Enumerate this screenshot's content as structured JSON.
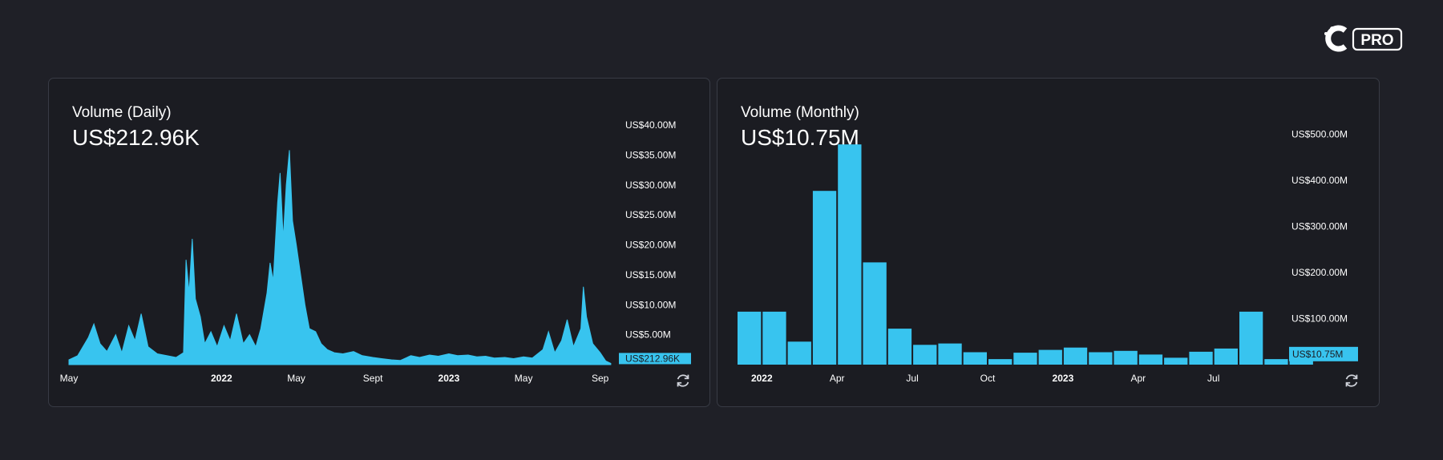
{
  "brand": {
    "logo_text": "PRO",
    "icon": "coingecko-pro-logo"
  },
  "colors": {
    "bar": "#38c4ef",
    "background": "#1f2027",
    "panel": "#1b1c22",
    "border": "#383b45"
  },
  "panels": [
    {
      "title": "Volume (Daily)",
      "value": "US$212.96K",
      "refresh_icon": "refresh-icon"
    },
    {
      "title": "Volume (Monthly)",
      "value": "US$10.75M",
      "refresh_icon": "refresh-icon"
    }
  ],
  "chart_data": [
    {
      "type": "area",
      "title": "Volume (Daily)",
      "ylim": [
        0,
        40000000
      ],
      "y_ticks": [
        {
          "value": 5000000,
          "label": "US$5.00M"
        },
        {
          "value": 10000000,
          "label": "US$10.00M"
        },
        {
          "value": 15000000,
          "label": "US$15.00M"
        },
        {
          "value": 20000000,
          "label": "US$20.00M"
        },
        {
          "value": 25000000,
          "label": "US$25.00M"
        },
        {
          "value": 30000000,
          "label": "US$30.00M"
        },
        {
          "value": 35000000,
          "label": "US$35.00M"
        },
        {
          "value": 40000000,
          "label": "US$40.00M"
        }
      ],
      "x_ticks": [
        {
          "date": "2021-05-01",
          "label": "May",
          "bold": false
        },
        {
          "date": "2022-01-01",
          "label": "2022",
          "bold": true
        },
        {
          "date": "2022-05-01",
          "label": "May",
          "bold": false
        },
        {
          "date": "2022-09-01",
          "label": "Sept",
          "bold": false
        },
        {
          "date": "2023-01-01",
          "label": "2023",
          "bold": true
        },
        {
          "date": "2023-05-01",
          "label": "May",
          "bold": false
        },
        {
          "date": "2023-09-01",
          "label": "Sep",
          "bold": false
        }
      ],
      "xlim": [
        "2021-05-01",
        "2023-10-01"
      ],
      "current_label": "US$212.96K",
      "points": [
        [
          "2021-05-01",
          800000
        ],
        [
          "2021-05-15",
          1500000
        ],
        [
          "2021-06-01",
          4500000
        ],
        [
          "2021-06-10",
          6800000
        ],
        [
          "2021-06-20",
          3500000
        ],
        [
          "2021-07-01",
          2200000
        ],
        [
          "2021-07-15",
          5000000
        ],
        [
          "2021-07-25",
          2000000
        ],
        [
          "2021-08-05",
          6500000
        ],
        [
          "2021-08-15",
          4000000
        ],
        [
          "2021-08-25",
          8500000
        ],
        [
          "2021-09-05",
          3000000
        ],
        [
          "2021-09-20",
          1800000
        ],
        [
          "2021-10-05",
          1500000
        ],
        [
          "2021-10-20",
          1200000
        ],
        [
          "2021-11-01",
          2000000
        ],
        [
          "2021-11-05",
          17500000
        ],
        [
          "2021-11-10",
          12000000
        ],
        [
          "2021-11-15",
          21000000
        ],
        [
          "2021-11-20",
          11000000
        ],
        [
          "2021-11-28",
          8000000
        ],
        [
          "2021-12-05",
          3500000
        ],
        [
          "2021-12-15",
          5500000
        ],
        [
          "2021-12-25",
          3000000
        ],
        [
          "2022-01-05",
          6500000
        ],
        [
          "2022-01-15",
          4000000
        ],
        [
          "2022-01-25",
          8500000
        ],
        [
          "2022-02-05",
          3500000
        ],
        [
          "2022-02-15",
          5000000
        ],
        [
          "2022-02-25",
          3000000
        ],
        [
          "2022-03-05",
          6000000
        ],
        [
          "2022-03-15",
          12000000
        ],
        [
          "2022-03-20",
          17000000
        ],
        [
          "2022-03-25",
          14000000
        ],
        [
          "2022-04-01",
          27000000
        ],
        [
          "2022-04-05",
          32000000
        ],
        [
          "2022-04-10",
          21000000
        ],
        [
          "2022-04-15",
          30000000
        ],
        [
          "2022-04-20",
          35800000
        ],
        [
          "2022-04-25",
          24000000
        ],
        [
          "2022-05-01",
          20000000
        ],
        [
          "2022-05-08",
          15000000
        ],
        [
          "2022-05-15",
          10000000
        ],
        [
          "2022-05-22",
          6000000
        ],
        [
          "2022-06-01",
          5500000
        ],
        [
          "2022-06-10",
          3500000
        ],
        [
          "2022-06-20",
          2500000
        ],
        [
          "2022-07-01",
          2000000
        ],
        [
          "2022-07-15",
          1800000
        ],
        [
          "2022-08-01",
          2200000
        ],
        [
          "2022-08-15",
          1500000
        ],
        [
          "2022-09-01",
          1200000
        ],
        [
          "2022-09-15",
          1000000
        ],
        [
          "2022-10-01",
          800000
        ],
        [
          "2022-10-15",
          700000
        ],
        [
          "2022-11-01",
          1500000
        ],
        [
          "2022-11-15",
          1200000
        ],
        [
          "2022-12-01",
          1600000
        ],
        [
          "2022-12-15",
          1400000
        ],
        [
          "2023-01-01",
          1800000
        ],
        [
          "2023-01-15",
          1500000
        ],
        [
          "2023-02-01",
          1600000
        ],
        [
          "2023-02-15",
          1300000
        ],
        [
          "2023-03-01",
          1400000
        ],
        [
          "2023-03-15",
          1100000
        ],
        [
          "2023-04-01",
          1200000
        ],
        [
          "2023-04-15",
          1000000
        ],
        [
          "2023-05-01",
          1300000
        ],
        [
          "2023-05-15",
          1100000
        ],
        [
          "2023-06-01",
          2500000
        ],
        [
          "2023-06-10",
          5500000
        ],
        [
          "2023-06-20",
          2000000
        ],
        [
          "2023-07-01",
          4000000
        ],
        [
          "2023-07-10",
          7500000
        ],
        [
          "2023-07-20",
          3000000
        ],
        [
          "2023-08-01",
          6000000
        ],
        [
          "2023-08-05",
          13000000
        ],
        [
          "2023-08-10",
          8000000
        ],
        [
          "2023-08-20",
          3500000
        ],
        [
          "2023-09-01",
          2000000
        ],
        [
          "2023-09-10",
          600000
        ],
        [
          "2023-09-18",
          212960
        ]
      ]
    },
    {
      "type": "bar",
      "title": "Volume (Monthly)",
      "ylim": [
        0,
        520000000
      ],
      "y_ticks": [
        {
          "value": 100000000,
          "label": "US$100.00M"
        },
        {
          "value": 200000000,
          "label": "US$200.00M"
        },
        {
          "value": 300000000,
          "label": "US$300.00M"
        },
        {
          "value": 400000000,
          "label": "US$400.00M"
        },
        {
          "value": 500000000,
          "label": "US$500.00M"
        }
      ],
      "x_ticks": [
        {
          "index": 1,
          "label": "2022",
          "bold": true
        },
        {
          "index": 4,
          "label": "Apr",
          "bold": false
        },
        {
          "index": 7,
          "label": "Jul",
          "bold": false
        },
        {
          "index": 10,
          "label": "Oct",
          "bold": false
        },
        {
          "index": 13,
          "label": "2023",
          "bold": true
        },
        {
          "index": 16,
          "label": "Apr",
          "bold": false
        },
        {
          "index": 19,
          "label": "Jul",
          "bold": false
        }
      ],
      "categories": [
        "2021-12",
        "2022-01",
        "2022-02",
        "2022-03",
        "2022-04",
        "2022-05",
        "2022-06",
        "2022-07",
        "2022-08",
        "2022-09",
        "2022-10",
        "2022-11",
        "2022-12",
        "2023-01",
        "2023-02",
        "2023-03",
        "2023-04",
        "2023-05",
        "2023-06",
        "2023-07",
        "2023-08",
        "2023-09",
        "2023-10"
      ],
      "values": [
        115000000,
        115000000,
        50000000,
        377000000,
        478000000,
        222000000,
        78000000,
        43000000,
        46000000,
        27000000,
        12000000,
        26000000,
        32000000,
        37000000,
        27000000,
        30000000,
        22000000,
        15000000,
        28000000,
        35000000,
        115000000,
        12000000,
        10750000
      ],
      "current_label": "US$10.75M"
    }
  ]
}
